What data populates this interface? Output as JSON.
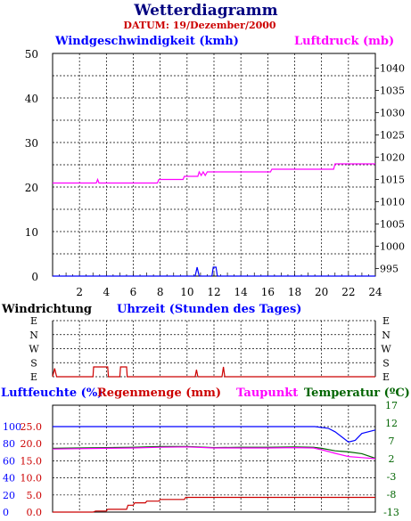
{
  "title": "Wetterdiagramm",
  "subtitle": "DATUM: 19/Dezember/2000",
  "colors": {
    "title": "#000080",
    "subtitle": "#cc0000",
    "wind": "#0000ff",
    "pressure": "#ff00ff",
    "humidity": "#0000ff",
    "rain": "#cc0000",
    "dewpoint": "#ff00ff",
    "temperature": "#006400"
  },
  "chart_data": [
    {
      "type": "line",
      "left_axis": {
        "title": "Windgeschwindigkeit (kmh)",
        "ticks": [
          "0",
          "10",
          "20",
          "30",
          "40",
          "50"
        ],
        "range": [
          0,
          50
        ]
      },
      "right_axis": {
        "title": "Luftdruck (mb)",
        "ticks": [
          "995",
          "1000",
          "1005",
          "1010",
          "1015",
          "1020",
          "1025",
          "1030",
          "1035",
          "1040"
        ],
        "range": [
          993.3,
          1043.3
        ]
      },
      "x_axis": {
        "ticks": [
          "2",
          "4",
          "6",
          "8",
          "10",
          "12",
          "14",
          "16",
          "18",
          "20",
          "22",
          "24"
        ],
        "range": [
          0,
          24
        ]
      },
      "grid": true,
      "series": [
        {
          "name": "Windgeschwindigkeit (kmh)",
          "axis": "left",
          "points": [
            [
              0,
              0
            ],
            [
              10.6,
              0
            ],
            [
              10.75,
              2
            ],
            [
              10.9,
              0
            ],
            [
              11.85,
              0
            ],
            [
              11.95,
              2
            ],
            [
              12.15,
              2
            ],
            [
              12.25,
              0
            ],
            [
              24,
              0
            ]
          ]
        },
        {
          "name": "Luftdruck (mb)",
          "axis": "right",
          "points": [
            [
              0,
              1014.2
            ],
            [
              3.25,
              1014.2
            ],
            [
              3.35,
              1015.0
            ],
            [
              3.45,
              1014.2
            ],
            [
              7.8,
              1014.2
            ],
            [
              7.9,
              1015.0
            ],
            [
              9.7,
              1015.0
            ],
            [
              9.8,
              1015.7
            ],
            [
              10.8,
              1015.7
            ],
            [
              10.9,
              1016.7
            ],
            [
              11.05,
              1015.9
            ],
            [
              11.2,
              1016.7
            ],
            [
              11.35,
              1015.9
            ],
            [
              11.5,
              1016.7
            ],
            [
              16.2,
              1016.7
            ],
            [
              16.3,
              1017.3
            ],
            [
              20.9,
              1017.3
            ],
            [
              21.0,
              1018.5
            ],
            [
              24,
              1018.5
            ]
          ]
        }
      ]
    },
    {
      "type": "line",
      "title_left": "Windrichtung",
      "title_center": "Uhrzeit (Stunden des Tages)",
      "categories": [
        "E",
        "N",
        "W",
        "S",
        "E"
      ],
      "grid": true,
      "series": [
        {
          "name": "Windrichtung",
          "points": [
            [
              0,
              0
            ],
            [
              0.15,
              0.6
            ],
            [
              0.3,
              0
            ],
            [
              3.0,
              0
            ],
            [
              3.05,
              0.7
            ],
            [
              4.1,
              0.7
            ],
            [
              4.15,
              0
            ],
            [
              5.0,
              0
            ],
            [
              5.05,
              0.7
            ],
            [
              5.5,
              0.7
            ],
            [
              5.55,
              0
            ],
            [
              10.6,
              0
            ],
            [
              10.7,
              0.5
            ],
            [
              10.8,
              0
            ],
            [
              12.6,
              0
            ],
            [
              12.7,
              0.7
            ],
            [
              12.8,
              0
            ],
            [
              24,
              0
            ]
          ]
        }
      ]
    },
    {
      "type": "line",
      "legend": [
        "Luftfeuchte (%)",
        "Regenmenge (mm)",
        "Taupunkt",
        "Temperatur (ºC)"
      ],
      "axes": {
        "humidity_ticks": [
          "0",
          "20",
          "40",
          "60",
          "80",
          "100"
        ],
        "rain_ticks": [
          "0.0",
          "5.0",
          "10.0",
          "15.0",
          "20.0",
          "25.0"
        ],
        "temp_ticks": [
          "-13",
          "-8",
          "-3",
          "2",
          "7",
          "12",
          "17"
        ],
        "humidity_range": [
          0,
          125
        ],
        "temp_range": [
          -13,
          17
        ]
      },
      "grid": true,
      "series": [
        {
          "name": "Luftfeuchte (%)",
          "points": [
            [
              0,
              100
            ],
            [
              19.5,
              100
            ],
            [
              20.5,
              98
            ],
            [
              21.0,
              94
            ],
            [
              21.5,
              88
            ],
            [
              22.0,
              82
            ],
            [
              22.5,
              84
            ],
            [
              23.0,
              92
            ],
            [
              24,
              96
            ]
          ]
        },
        {
          "name": "Regenmenge (mm)",
          "points": [
            [
              0,
              0.0
            ],
            [
              0.1,
              0.0
            ],
            [
              0.2,
              0
            ],
            [
              3.0,
              0
            ],
            [
              3.2,
              0.3
            ],
            [
              4.0,
              0.3
            ],
            [
              4.1,
              0.8
            ],
            [
              5.5,
              0.8
            ],
            [
              5.6,
              2.0
            ],
            [
              6.0,
              2.0
            ],
            [
              6.1,
              2.7
            ],
            [
              6.9,
              2.7
            ],
            [
              7.0,
              3.2
            ],
            [
              7.9,
              3.2
            ],
            [
              8.0,
              3.7
            ],
            [
              9.8,
              3.7
            ],
            [
              9.9,
              4.3
            ],
            [
              24,
              4.3
            ]
          ]
        },
        {
          "name": "Taupunkt",
          "points": [
            [
              0,
              4.7
            ],
            [
              4,
              4.9
            ],
            [
              6,
              5.0
            ],
            [
              8,
              5.2
            ],
            [
              10,
              5.3
            ],
            [
              12,
              5.0
            ],
            [
              14,
              5.0
            ],
            [
              16,
              5.0
            ],
            [
              18,
              5.1
            ],
            [
              19.4,
              5.0
            ],
            [
              20,
              4.5
            ],
            [
              21,
              3.5
            ],
            [
              22,
              2.6
            ],
            [
              23,
              2.3
            ],
            [
              24,
              2.0
            ]
          ]
        },
        {
          "name": "Temperatur (ºC)",
          "points": [
            [
              0,
              4.9
            ],
            [
              4,
              5.1
            ],
            [
              6,
              5.2
            ],
            [
              8,
              5.4
            ],
            [
              10,
              5.4
            ],
            [
              12,
              5.1
            ],
            [
              14,
              5.2
            ],
            [
              16,
              5.2
            ],
            [
              18,
              5.3
            ],
            [
              19.4,
              5.2
            ],
            [
              20,
              4.9
            ],
            [
              21,
              4.2
            ],
            [
              22,
              3.9
            ],
            [
              23,
              3.4
            ],
            [
              24,
              2.1
            ]
          ]
        }
      ]
    }
  ]
}
